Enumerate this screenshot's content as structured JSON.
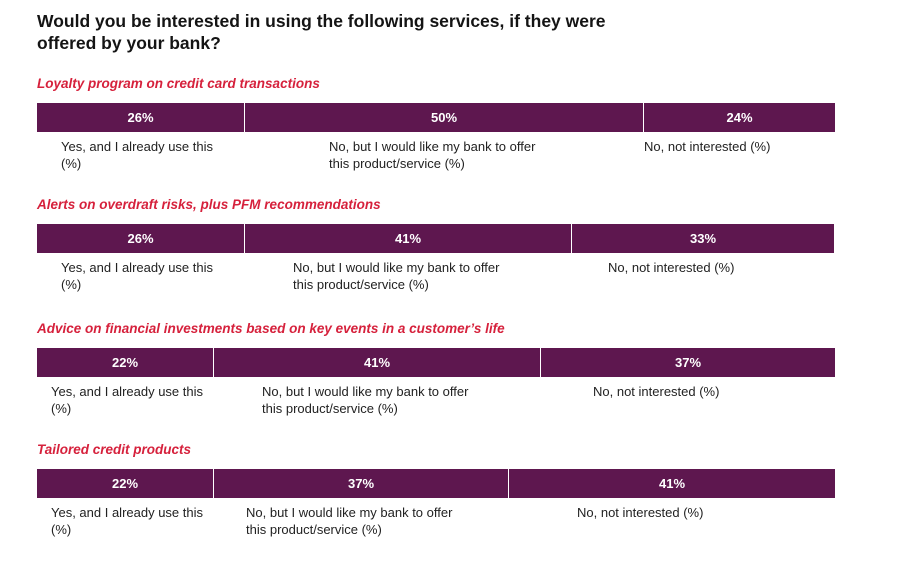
{
  "title": "Would you be interested in using the following services, if they were offered by your bank?",
  "chart_data": {
    "type": "bar",
    "orientation": "horizontal-stacked-100",
    "title": "Would you be interested in using the following services, if they were offered by your bank?",
    "colors": {
      "bar": "#5e174f",
      "section_title": "#d6213c"
    },
    "categories": [
      "Loyalty program on credit card transactions",
      "Alerts on overdraft risks, plus PFM recommendations",
      "Advice on financial investments based on key events in a customer’s life",
      "Tailored credit products"
    ],
    "series": [
      {
        "name": "Yes, and I already use this (%)",
        "values": [
          26,
          26,
          22,
          22
        ]
      },
      {
        "name": "No, but I would like my bank to offer this product/service (%)",
        "values": [
          50,
          41,
          41,
          37
        ]
      },
      {
        "name": "No, not interested (%)",
        "values": [
          24,
          33,
          37,
          41
        ]
      }
    ],
    "value_labels": [
      [
        "26%",
        "50%",
        "24%"
      ],
      [
        "26%",
        "41%",
        "33%"
      ],
      [
        "22%",
        "41%",
        "37%"
      ],
      [
        "22%",
        "37%",
        "41%"
      ]
    ]
  }
}
